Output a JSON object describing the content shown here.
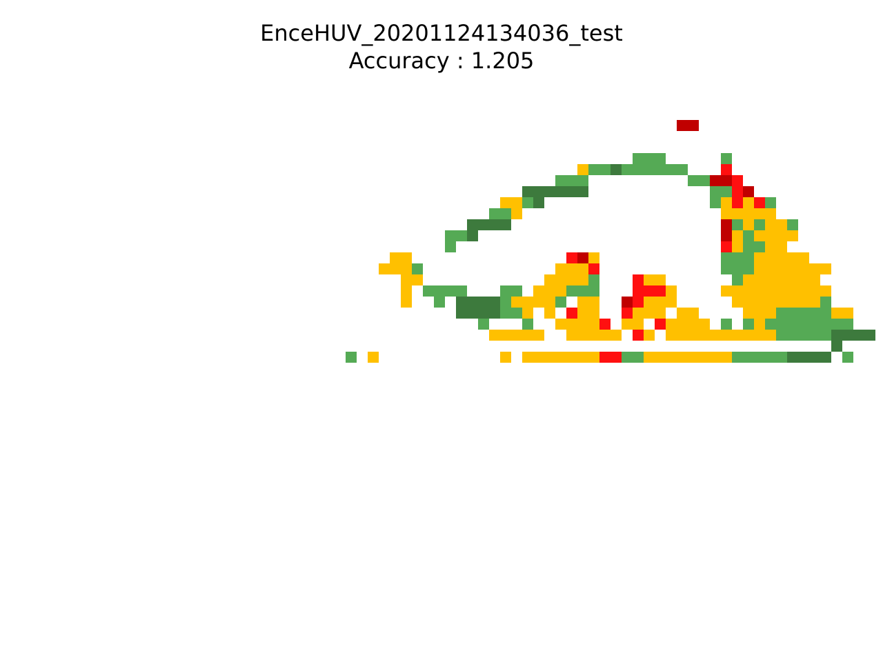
{
  "chart_data": {
    "type": "heatmap",
    "title": "EnceHUV_20201124134036_test",
    "subtitle": "Accuracy : 1.205",
    "axes_visible": false,
    "legend": "none",
    "grid": false,
    "colors": {
      "1": "#c00000",
      "2": "#ff1010",
      "3": "#ffc000",
      "4": "#55aa55",
      "5": "#3d7a3d"
    },
    "grid_values": [
      "....................................................................",
      "............................................11......................",
      "....................................................................",
      "....................................................................",
      "........................................444.....4...................",
      "...................................3445444444...2...................",
      ".................................444.........44112..................",
      "..............................555555...........4421.................",
      "............................3345...............432324................",
      "...........................443..................33333...............",
      ".........................5555...................1434334..............",
      ".......................445......................1343333..............",
      ".......................4........................234433...............",
      "..................33..............213...........44433333............",
      ".................3334............3332...........4443333333...........",
      "...................33...........33334...233......43333333...........",
      "...................3.4444...44.333444...2223....3333333333..........",
      "...................3..4.5555433334.33..12333.....333333334..........",
      "........................5555443.3.233..2333.33....3334444433........",
      "..........................4...4..33332.33.23333.4.4344444444........",
      "...........................33333..33333.23.333333333344444555555....",
      "..........................................................5...........",
      "..............4.3...........3.3333333224433333333444445555.4........",
      ".................................................................",
      "...................................................................."
    ]
  }
}
